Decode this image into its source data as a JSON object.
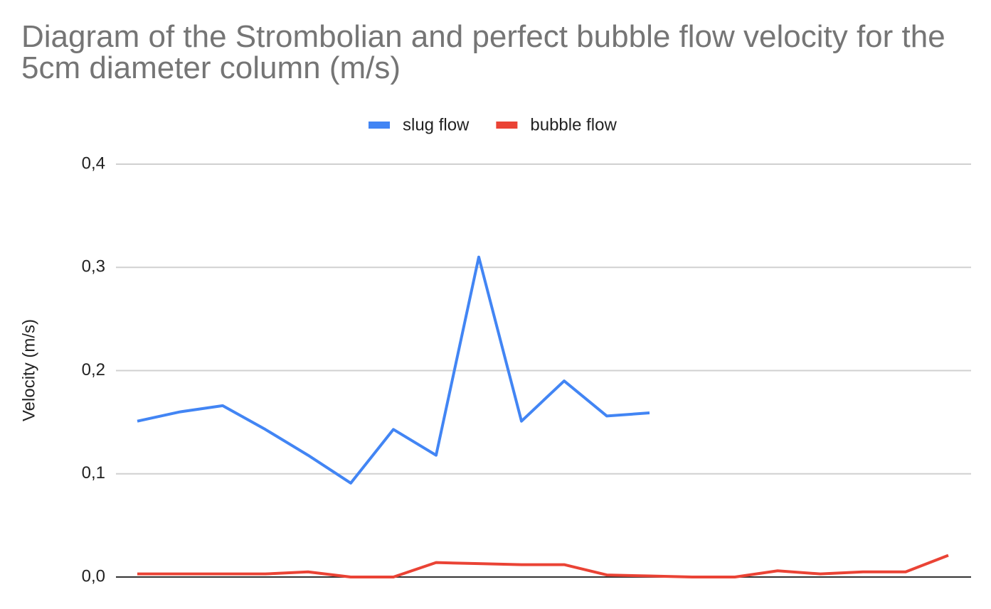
{
  "chart_data": {
    "type": "line",
    "title": "Diagram of the Strombolian and perfect bubble flow velocity for the 5cm diameter column (m/s)",
    "y_label": "Velocity (m/s)",
    "categories": [
      null,
      null,
      null,
      null,
      null,
      null,
      null,
      null,
      null,
      null,
      null,
      null,
      null,
      null,
      null,
      null,
      null,
      null,
      null,
      null
    ],
    "series": [
      {
        "name": "slug flow",
        "color": "#4285f4",
        "values": [
          0.151,
          0.16,
          0.166,
          0.143,
          0.118,
          0.091,
          0.143,
          0.118,
          0.31,
          0.151,
          0.19,
          0.156,
          0.159,
          null,
          null,
          null,
          null,
          null,
          null,
          null
        ]
      },
      {
        "name": "bubble flow",
        "color": "#ea4335",
        "values": [
          0.003,
          0.003,
          0.003,
          0.003,
          0.005,
          0,
          0,
          0.014,
          0.013,
          0.012,
          0.012,
          0.002,
          0.001,
          0,
          0,
          0.006,
          0.003,
          0.005,
          0.005,
          0.021
        ]
      }
    ],
    "ylim": [
      0,
      0.4
    ],
    "yticks": [
      {
        "value": 0,
        "label": "0,0"
      },
      {
        "value": 0.1,
        "label": "0,1"
      },
      {
        "value": 0.2,
        "label": "0,2"
      },
      {
        "value": 0.3,
        "label": "0,3"
      },
      {
        "value": 0.4,
        "label": "0,4"
      }
    ],
    "grid": true,
    "legend": "top"
  }
}
